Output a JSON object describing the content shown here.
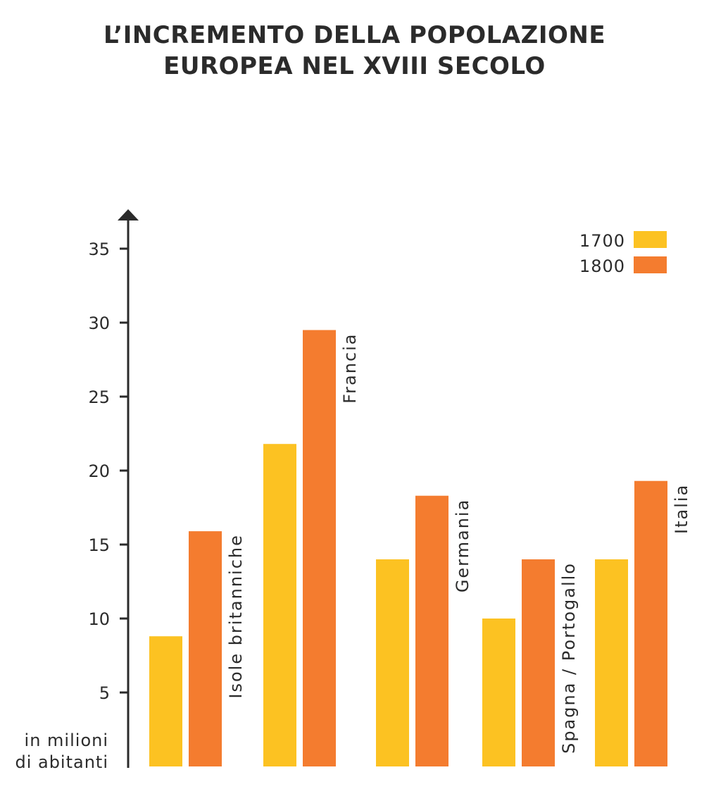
{
  "chart_data": {
    "type": "bar",
    "title_lines": [
      "L’INCREMENTO DELLA POPOLAZIONE",
      "EUROPEA NEL XVIII SECOLO"
    ],
    "ylabel_lines": [
      "in milioni",
      "di abitanti"
    ],
    "categories": [
      "Isole britanniche",
      "Francia",
      "Germania",
      "Spagna / Portogallo",
      "Italia"
    ],
    "series": [
      {
        "name": "1700",
        "color": "#fcc222",
        "values": [
          8.8,
          21.8,
          14,
          10,
          14
        ]
      },
      {
        "name": "1800",
        "color": "#f47c2f",
        "values": [
          15.9,
          29.5,
          18.3,
          14,
          19.3
        ]
      }
    ],
    "yticks": [
      "5",
      "10",
      "15",
      "20",
      "25",
      "30",
      "35"
    ],
    "ylim": [
      0,
      37
    ],
    "legend": "top-right",
    "grid": false
  }
}
